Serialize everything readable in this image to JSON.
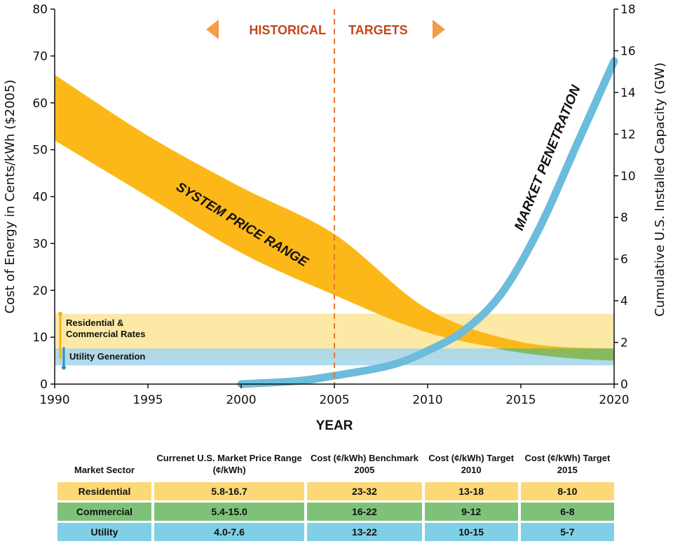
{
  "chart_data": {
    "type": "area",
    "xlabel": "YEAR",
    "ylabel": "Cost of Energy in Cents/kWh ($2005)",
    "y2label": "Cumulative U.S. Installed Capacity (GW)",
    "xlim": [
      1990,
      2020
    ],
    "ylim": [
      0,
      80
    ],
    "y2lim": [
      0,
      18
    ],
    "x_ticks": [
      "1990",
      "1995",
      "2000",
      "2005",
      "2010",
      "2015",
      "2020"
    ],
    "y_ticks": [
      "0",
      "10",
      "20",
      "30",
      "40",
      "50",
      "60",
      "70",
      "80"
    ],
    "y2_ticks": [
      "0",
      "2",
      "4",
      "6",
      "8",
      "10",
      "12",
      "14",
      "16",
      "18"
    ],
    "divider_year": 2005,
    "arrow_labels": {
      "left": "HISTORICAL",
      "right": "TARGETS"
    },
    "system_price_range": {
      "label": "SYSTEM PRICE RANGE",
      "x": [
        1990,
        1995,
        2000,
        2005,
        2010,
        2015,
        2020
      ],
      "upper": [
        66,
        53,
        42,
        32,
        16,
        9,
        7.5
      ],
      "lower": [
        52,
        40,
        28,
        19,
        11,
        7,
        5
      ]
    },
    "residential_commercial_rates": {
      "label": "Residential & Commercial Rates",
      "range": [
        5.4,
        15
      ]
    },
    "utility_generation": {
      "label": "Utility Generation",
      "range": [
        4,
        7.6
      ]
    },
    "market_penetration": {
      "label": "MARKET PENETRATION",
      "x": [
        2000,
        2003,
        2005,
        2008,
        2010,
        2012,
        2014,
        2016,
        2018,
        2020
      ],
      "gw": [
        0,
        0.15,
        0.4,
        0.9,
        1.6,
        2.6,
        4.4,
        7.5,
        11.5,
        15.5
      ]
    },
    "colors": {
      "price_band": "#fbb818",
      "rates_band": "#fde9a6",
      "utility_band": "#a9d7ec",
      "commercial_overlap": "#73b86a",
      "penetration": "#6cbcdc",
      "divider": "#e8772e",
      "arrow": "#f39c4a",
      "arrow_text": "#c2481a"
    },
    "table": {
      "headers": [
        "Market Sector",
        "Currenet U.S. Market Price Range (¢/kWh)",
        "Cost (¢/kWh) Benchmark 2005",
        "Cost (¢/kWh) Target 2010",
        "Cost (¢/kWh) Target 2015"
      ],
      "rows": [
        [
          "Residential",
          "5.8-16.7",
          "23-32",
          "13-18",
          "8-10"
        ],
        [
          "Commercial",
          "5.4-15.0",
          "16-22",
          "9-12",
          "6-8"
        ],
        [
          "Utility",
          "4.0-7.6",
          "13-22",
          "10-15",
          "5-7"
        ]
      ]
    }
  }
}
